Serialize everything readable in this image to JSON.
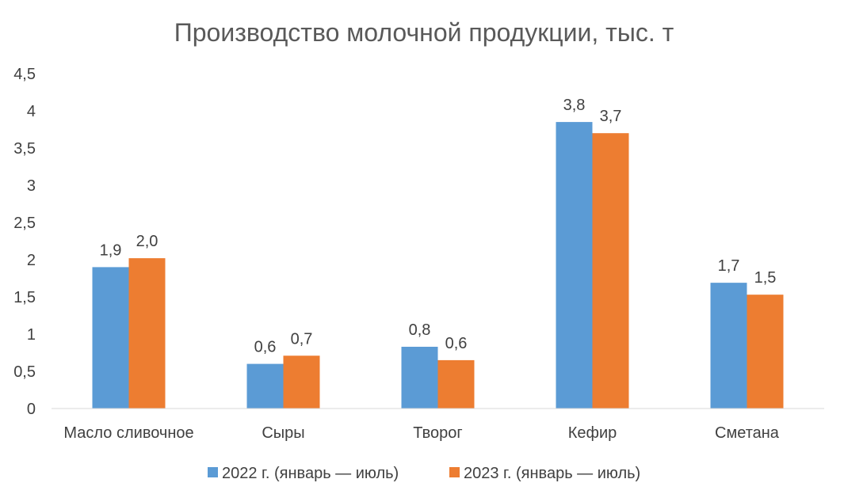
{
  "chart_data": {
    "type": "bar",
    "title": "Производство молочной продукции, тыс. т",
    "categories": [
      "Масло сливочное",
      "Сыры",
      "Творог",
      "Кефир",
      "Сметана"
    ],
    "series": [
      {
        "name": "2022 г. (январь — июль)",
        "color": "#5B9BD5",
        "values": [
          1.9,
          0.6,
          0.83,
          3.85,
          1.69
        ],
        "labels": [
          "1,9",
          "0,6",
          "0,8",
          "3,8",
          "1,7"
        ]
      },
      {
        "name": "2023 г. (январь — июль)",
        "color": "#ED7D31",
        "values": [
          2.02,
          0.71,
          0.65,
          3.7,
          1.53
        ],
        "labels": [
          "2,0",
          "0,7",
          "0,6",
          "3,7",
          "1,5"
        ]
      }
    ],
    "ylim": [
      0,
      4.5
    ],
    "yticks": [
      0,
      0.5,
      1,
      1.5,
      2,
      2.5,
      3,
      3.5,
      4,
      4.5
    ],
    "ytick_labels": [
      "0",
      "0,5",
      "1",
      "1,5",
      "2",
      "2,5",
      "3",
      "3,5",
      "4",
      "4,5"
    ],
    "xlabel": "",
    "ylabel": "",
    "grid": false,
    "legend_position": "bottom"
  }
}
